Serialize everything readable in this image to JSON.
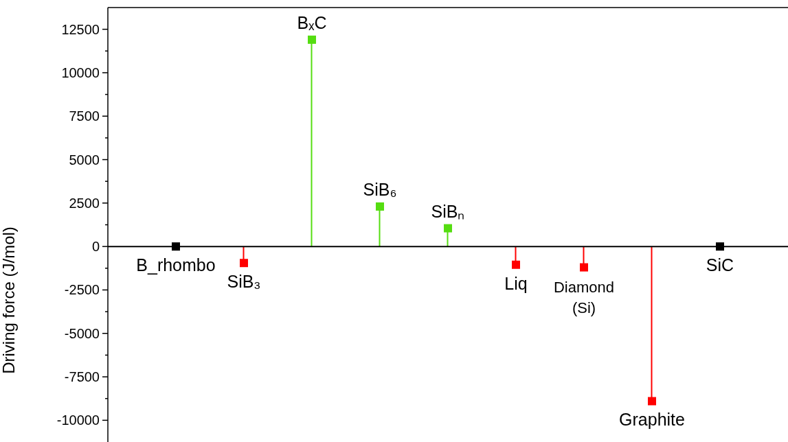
{
  "chart_data": {
    "type": "lollipop",
    "ylabel": "Driving force (J/mol)",
    "categories": [
      "B_rhombo",
      "SiB₃",
      "BₓC",
      "SiB₆",
      "SiBₙ",
      "Liq",
      "Diamond (Si)",
      "Graphite",
      "SiC"
    ],
    "values": [
      0,
      -950,
      11900,
      2300,
      1050,
      -1050,
      -1200,
      -8900,
      0
    ],
    "colors": [
      "#000000",
      "#ff0000",
      "#55dd11",
      "#55dd11",
      "#55dd11",
      "#ff0000",
      "#ff0000",
      "#ff0000",
      "#000000"
    ],
    "ylim": [
      -11250,
      13750
    ],
    "yticks": [
      -10000,
      {
        "value": -8750,
        "label": null
      },
      -7500,
      {
        "value": -6250,
        "label": null
      },
      -5000,
      {
        "value": -3750,
        "label": null
      },
      -2500,
      {
        "value": -1250,
        "label": null
      },
      0,
      {
        "value": 1250,
        "label": null
      },
      2500,
      {
        "value": 3750,
        "label": null
      },
      5000,
      {
        "value": 6250,
        "label": null
      },
      7500,
      {
        "value": 8750,
        "label": null
      },
      10000,
      {
        "value": 11250,
        "label": null
      },
      12500
    ],
    "grid": false,
    "tick_labels": "y",
    "marker": "square"
  }
}
